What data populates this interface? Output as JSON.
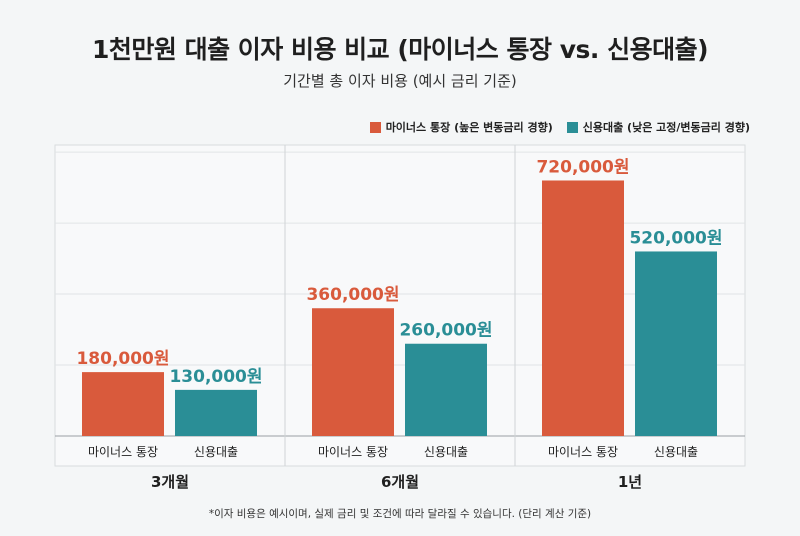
{
  "chart_data": {
    "type": "bar",
    "title": "1천만원 대출 이자 비용 비교 (마이너스 통장 vs. 신용대출)",
    "subtitle": "기간별 총 이자 비용 (예시 금리 기준)",
    "categories": [
      "3개월",
      "6개월",
      "1년"
    ],
    "series": [
      {
        "name": "마이너스 통장",
        "legend": "마이너스 통장 (높은 변동금리 경향)",
        "color": "#d95a3c",
        "values": [
          180000,
          360000,
          720000
        ],
        "labels": [
          "180,000원",
          "360,000원",
          "720,000원"
        ]
      },
      {
        "name": "신용대출",
        "legend": "신용대출 (낮은 고정/변동금리 경향)",
        "color": "#2a8e96",
        "values": [
          130000,
          260000,
          520000
        ],
        "labels": [
          "130,000원",
          "260,000원",
          "520,000원"
        ]
      }
    ],
    "ylim": [
      0,
      820000
    ],
    "grid": true,
    "gridstep": 200000,
    "legend_position": "top-right",
    "xlabel": "",
    "ylabel": "",
    "footnote": "*이자 비용은 예시이며, 실제 금리 및 조건에 따라 달라질 수 있습니다. (단리 계산 기준)"
  }
}
